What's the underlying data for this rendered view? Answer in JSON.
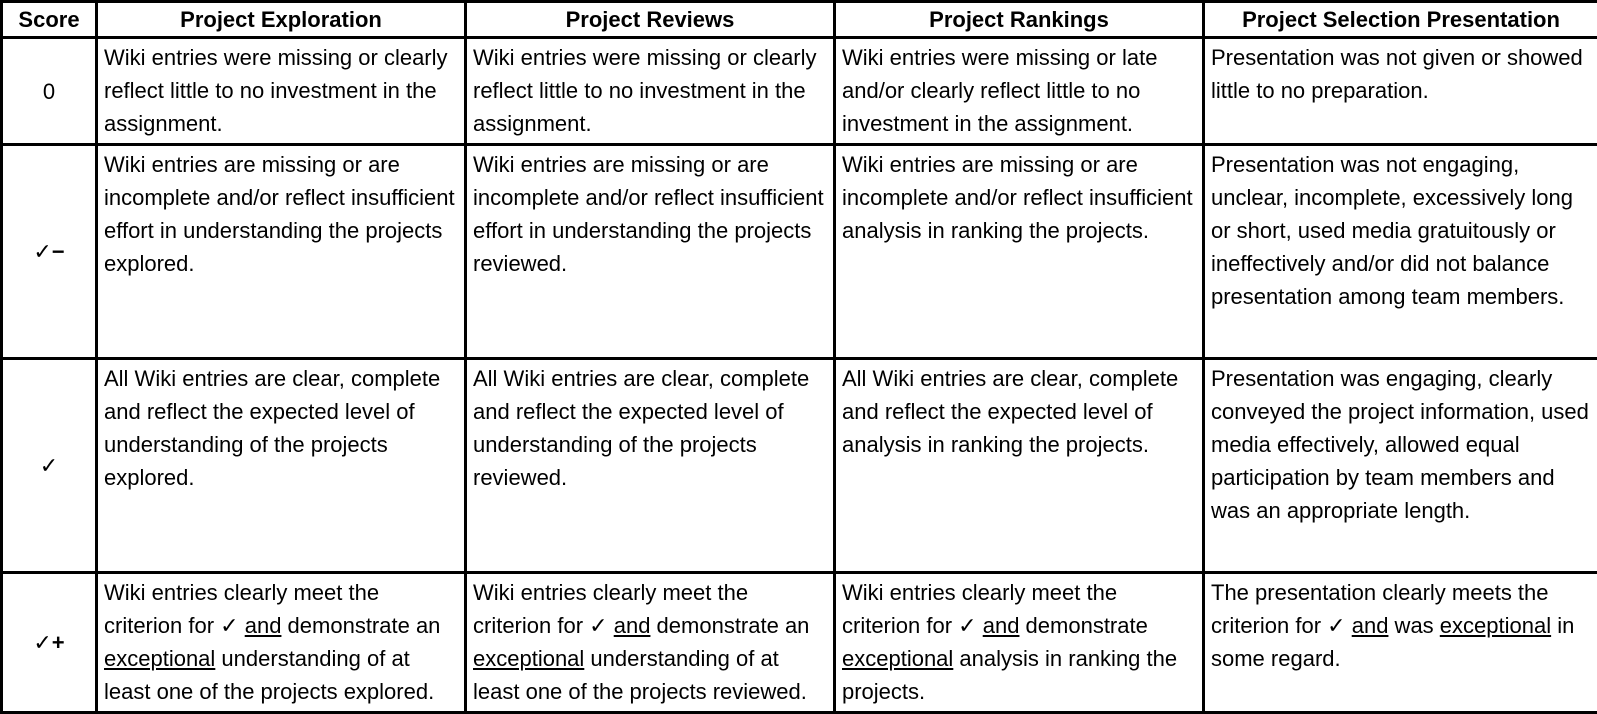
{
  "headers": {
    "score": "Score",
    "exploration": "Project Exploration",
    "reviews": "Project Reviews",
    "rankings": "Project Rankings",
    "presentation": "Project Selection Presentation"
  },
  "rows": [
    {
      "score": "0",
      "exploration": "Wiki entries were missing or clearly reflect little to no investment in the assignment.",
      "reviews": "Wiki entries were missing or clearly reflect little to no investment in the assignment.",
      "rankings": "Wiki entries were missing or late and/or clearly reflect little to no investment in the assignment.",
      "presentation": "Presentation was not given or showed little to no preparation."
    },
    {
      "score": "✓−",
      "exploration": "Wiki entries are missing or are incomplete and/or reflect insufficient effort in understanding the projects explored.",
      "reviews": "Wiki entries are missing or are incomplete and/or reflect insufficient effort in understanding the projects reviewed.",
      "rankings": "Wiki entries are missing or are incomplete and/or reflect insufficient analysis in ranking the projects.",
      "presentation": "Presentation was not engaging, unclear, incomplete, excessively long or short, used media gratuitously or ineffectively and/or did not balance presentation among team members."
    },
    {
      "score": "✓",
      "exploration": "All Wiki entries are clear, complete and reflect the expected level of understanding of the projects explored.",
      "reviews": "All Wiki entries are clear, complete and reflect the expected level of understanding of the projects reviewed.",
      "rankings": "All Wiki entries are clear, complete and reflect the expected level of analysis in ranking the projects.",
      "presentation": "Presentation was engaging, clearly conveyed the project information, used media effectively, allowed equal participation by team members and was an appropriate length."
    },
    {
      "score": "✓+",
      "exploration": {
        "a": "Wiki entries clearly meet the criterion for ",
        "check": "✓",
        "sp1": " ",
        "and": "and",
        "b": " demonstrate an ",
        "exceptional": "exceptional",
        "c": " understanding of at least one of the projects explored."
      },
      "reviews": {
        "a": "Wiki entries clearly meet the criterion for ",
        "check": "✓",
        "sp1": " ",
        "and": "and",
        "b": " demonstrate an ",
        "exceptional": "exceptional",
        "c": " understanding of at least one of the projects reviewed."
      },
      "rankings": {
        "a": "Wiki entries clearly meet the criterion for ",
        "check": "✓",
        "sp1": " ",
        "and": "and",
        "b": " demonstrate ",
        "exceptional": "exceptional",
        "c": " analysis in ranking the projects."
      },
      "presentation": {
        "a": "The presentation clearly meets the criterion for ",
        "check": "✓",
        "sp1": " ",
        "and": "and",
        "b": " was ",
        "exceptional": "exceptional",
        "c": " in some regard."
      }
    }
  ]
}
